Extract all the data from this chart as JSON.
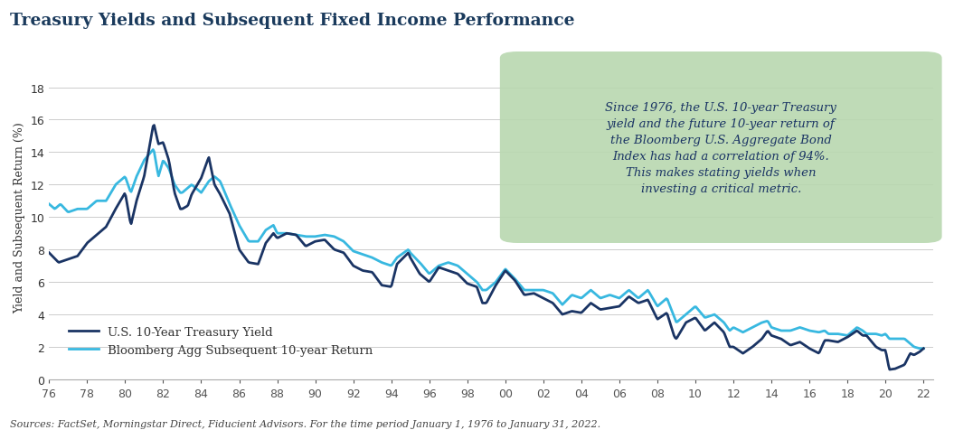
{
  "title": "Treasury Yields and Subsequent Fixed Income Performance",
  "ylabel": "Yield and Subsequent Return (%)",
  "footnote": "Sources: FactSet, Morningstar Direct, Fiducient Advisors. For the time period January 1, 1976 to January 31, 2022.",
  "annotation": "Since 1976, the U.S. 10-year Treasury\nyield and the future 10-year return of\nthe Bloomberg U.S. Aggregate Bond\nIndex has had a correlation of 94%.\nThis makes stating yields when\ninvesting a critical metric.",
  "annotation_box_color": "#b8d8b0",
  "title_color": "#1a3a5c",
  "line1_color": "#1a3464",
  "line2_color": "#38b8e0",
  "line1_label": "U.S. 10-Year Treasury Yield",
  "line2_label": "Bloomberg Agg Subsequent 10-year Return",
  "ylim": [
    0,
    20
  ],
  "yticks": [
    0,
    2,
    4,
    6,
    8,
    10,
    12,
    14,
    16,
    18
  ],
  "treasury_keypoints": [
    [
      1976.0,
      7.8
    ],
    [
      1976.5,
      7.2
    ],
    [
      1977.0,
      7.4
    ],
    [
      1977.5,
      7.6
    ],
    [
      1978.0,
      8.4
    ],
    [
      1978.5,
      8.9
    ],
    [
      1979.0,
      9.4
    ],
    [
      1979.5,
      10.5
    ],
    [
      1980.0,
      11.5
    ],
    [
      1980.3,
      9.5
    ],
    [
      1980.6,
      11.0
    ],
    [
      1981.0,
      12.5
    ],
    [
      1981.5,
      15.8
    ],
    [
      1981.75,
      14.5
    ],
    [
      1982.0,
      14.6
    ],
    [
      1982.3,
      13.5
    ],
    [
      1982.6,
      11.5
    ],
    [
      1982.9,
      10.5
    ],
    [
      1983.0,
      10.5
    ],
    [
      1983.3,
      10.7
    ],
    [
      1983.5,
      11.4
    ],
    [
      1984.0,
      12.4
    ],
    [
      1984.4,
      13.7
    ],
    [
      1984.7,
      12.0
    ],
    [
      1985.0,
      11.4
    ],
    [
      1985.5,
      10.2
    ],
    [
      1986.0,
      8.0
    ],
    [
      1986.5,
      7.2
    ],
    [
      1987.0,
      7.1
    ],
    [
      1987.4,
      8.4
    ],
    [
      1987.8,
      9.0
    ],
    [
      1988.0,
      8.7
    ],
    [
      1988.5,
      9.0
    ],
    [
      1989.0,
      8.9
    ],
    [
      1989.5,
      8.2
    ],
    [
      1990.0,
      8.5
    ],
    [
      1990.5,
      8.6
    ],
    [
      1991.0,
      8.0
    ],
    [
      1991.5,
      7.8
    ],
    [
      1992.0,
      7.0
    ],
    [
      1992.5,
      6.7
    ],
    [
      1993.0,
      6.6
    ],
    [
      1993.5,
      5.8
    ],
    [
      1994.0,
      5.7
    ],
    [
      1994.3,
      7.1
    ],
    [
      1994.9,
      7.8
    ],
    [
      1995.0,
      7.5
    ],
    [
      1995.5,
      6.5
    ],
    [
      1996.0,
      6.0
    ],
    [
      1996.5,
      6.9
    ],
    [
      1997.0,
      6.7
    ],
    [
      1997.5,
      6.5
    ],
    [
      1998.0,
      5.9
    ],
    [
      1998.5,
      5.7
    ],
    [
      1998.8,
      4.7
    ],
    [
      1999.0,
      4.7
    ],
    [
      1999.5,
      5.8
    ],
    [
      2000.0,
      6.7
    ],
    [
      2000.5,
      6.1
    ],
    [
      2001.0,
      5.2
    ],
    [
      2001.5,
      5.3
    ],
    [
      2002.0,
      5.0
    ],
    [
      2002.5,
      4.7
    ],
    [
      2003.0,
      4.0
    ],
    [
      2003.5,
      4.2
    ],
    [
      2004.0,
      4.1
    ],
    [
      2004.5,
      4.7
    ],
    [
      2005.0,
      4.3
    ],
    [
      2005.5,
      4.4
    ],
    [
      2006.0,
      4.5
    ],
    [
      2006.5,
      5.1
    ],
    [
      2007.0,
      4.7
    ],
    [
      2007.5,
      4.9
    ],
    [
      2008.0,
      3.7
    ],
    [
      2008.5,
      4.1
    ],
    [
      2008.9,
      2.6
    ],
    [
      2009.0,
      2.5
    ],
    [
      2009.5,
      3.5
    ],
    [
      2010.0,
      3.8
    ],
    [
      2010.5,
      3.0
    ],
    [
      2011.0,
      3.5
    ],
    [
      2011.5,
      2.9
    ],
    [
      2011.8,
      2.0
    ],
    [
      2012.0,
      2.0
    ],
    [
      2012.5,
      1.6
    ],
    [
      2013.0,
      2.0
    ],
    [
      2013.5,
      2.5
    ],
    [
      2013.8,
      3.0
    ],
    [
      2014.0,
      2.7
    ],
    [
      2014.5,
      2.5
    ],
    [
      2015.0,
      2.1
    ],
    [
      2015.5,
      2.3
    ],
    [
      2016.0,
      1.9
    ],
    [
      2016.5,
      1.6
    ],
    [
      2016.8,
      2.4
    ],
    [
      2017.0,
      2.4
    ],
    [
      2017.5,
      2.3
    ],
    [
      2018.0,
      2.6
    ],
    [
      2018.5,
      3.0
    ],
    [
      2018.8,
      2.7
    ],
    [
      2019.0,
      2.7
    ],
    [
      2019.5,
      2.0
    ],
    [
      2019.8,
      1.8
    ],
    [
      2020.0,
      1.8
    ],
    [
      2020.2,
      0.6
    ],
    [
      2020.5,
      0.65
    ],
    [
      2021.0,
      0.9
    ],
    [
      2021.3,
      1.6
    ],
    [
      2021.5,
      1.5
    ],
    [
      2021.8,
      1.7
    ],
    [
      2022.0,
      1.9
    ]
  ],
  "agg_keypoints": [
    [
      1976.0,
      10.8
    ],
    [
      1976.3,
      10.5
    ],
    [
      1976.6,
      10.8
    ],
    [
      1977.0,
      10.3
    ],
    [
      1977.5,
      10.5
    ],
    [
      1978.0,
      10.5
    ],
    [
      1978.5,
      11.0
    ],
    [
      1979.0,
      11.0
    ],
    [
      1979.5,
      12.0
    ],
    [
      1980.0,
      12.5
    ],
    [
      1980.3,
      11.5
    ],
    [
      1980.6,
      12.5
    ],
    [
      1981.0,
      13.5
    ],
    [
      1981.5,
      14.2
    ],
    [
      1981.75,
      12.5
    ],
    [
      1982.0,
      13.5
    ],
    [
      1982.3,
      13.0
    ],
    [
      1982.6,
      12.0
    ],
    [
      1982.9,
      11.5
    ],
    [
      1983.0,
      11.5
    ],
    [
      1983.3,
      11.8
    ],
    [
      1983.5,
      12.0
    ],
    [
      1984.0,
      11.5
    ],
    [
      1984.4,
      12.2
    ],
    [
      1984.7,
      12.5
    ],
    [
      1985.0,
      12.2
    ],
    [
      1985.5,
      10.8
    ],
    [
      1986.0,
      9.5
    ],
    [
      1986.5,
      8.5
    ],
    [
      1987.0,
      8.5
    ],
    [
      1987.4,
      9.2
    ],
    [
      1987.8,
      9.5
    ],
    [
      1988.0,
      9.0
    ],
    [
      1988.5,
      9.0
    ],
    [
      1989.0,
      8.9
    ],
    [
      1989.5,
      8.8
    ],
    [
      1990.0,
      8.8
    ],
    [
      1990.5,
      8.9
    ],
    [
      1991.0,
      8.8
    ],
    [
      1991.5,
      8.5
    ],
    [
      1992.0,
      7.9
    ],
    [
      1992.5,
      7.7
    ],
    [
      1993.0,
      7.5
    ],
    [
      1993.5,
      7.2
    ],
    [
      1994.0,
      7.0
    ],
    [
      1994.3,
      7.5
    ],
    [
      1994.9,
      8.0
    ],
    [
      1995.0,
      7.8
    ],
    [
      1995.5,
      7.2
    ],
    [
      1996.0,
      6.5
    ],
    [
      1996.5,
      7.0
    ],
    [
      1997.0,
      7.2
    ],
    [
      1997.5,
      7.0
    ],
    [
      1998.0,
      6.5
    ],
    [
      1998.5,
      6.0
    ],
    [
      1998.8,
      5.5
    ],
    [
      1999.0,
      5.5
    ],
    [
      1999.5,
      6.0
    ],
    [
      2000.0,
      6.8
    ],
    [
      2000.5,
      6.2
    ],
    [
      2001.0,
      5.5
    ],
    [
      2001.5,
      5.5
    ],
    [
      2002.0,
      5.5
    ],
    [
      2002.5,
      5.3
    ],
    [
      2003.0,
      4.6
    ],
    [
      2003.5,
      5.2
    ],
    [
      2004.0,
      5.0
    ],
    [
      2004.5,
      5.5
    ],
    [
      2005.0,
      5.0
    ],
    [
      2005.5,
      5.2
    ],
    [
      2006.0,
      5.0
    ],
    [
      2006.5,
      5.5
    ],
    [
      2007.0,
      5.0
    ],
    [
      2007.5,
      5.5
    ],
    [
      2008.0,
      4.5
    ],
    [
      2008.5,
      5.0
    ],
    [
      2008.9,
      3.8
    ],
    [
      2009.0,
      3.5
    ],
    [
      2009.5,
      4.0
    ],
    [
      2010.0,
      4.5
    ],
    [
      2010.5,
      3.8
    ],
    [
      2011.0,
      4.0
    ],
    [
      2011.5,
      3.5
    ],
    [
      2011.8,
      3.0
    ],
    [
      2012.0,
      3.2
    ],
    [
      2012.5,
      2.9
    ],
    [
      2013.0,
      3.2
    ],
    [
      2013.5,
      3.5
    ],
    [
      2013.8,
      3.6
    ],
    [
      2014.0,
      3.2
    ],
    [
      2014.5,
      3.0
    ],
    [
      2015.0,
      3.0
    ],
    [
      2015.5,
      3.2
    ],
    [
      2016.0,
      3.0
    ],
    [
      2016.5,
      2.9
    ],
    [
      2016.8,
      3.0
    ],
    [
      2017.0,
      2.8
    ],
    [
      2017.5,
      2.8
    ],
    [
      2018.0,
      2.7
    ],
    [
      2018.5,
      3.2
    ],
    [
      2018.8,
      3.0
    ],
    [
      2019.0,
      2.8
    ],
    [
      2019.5,
      2.8
    ],
    [
      2019.8,
      2.7
    ],
    [
      2020.0,
      2.8
    ],
    [
      2020.2,
      2.5
    ],
    [
      2020.5,
      2.5
    ],
    [
      2021.0,
      2.5
    ],
    [
      2021.3,
      2.2
    ],
    [
      2021.5,
      2.0
    ],
    [
      2021.8,
      1.9
    ],
    [
      2022.0,
      1.9
    ]
  ]
}
